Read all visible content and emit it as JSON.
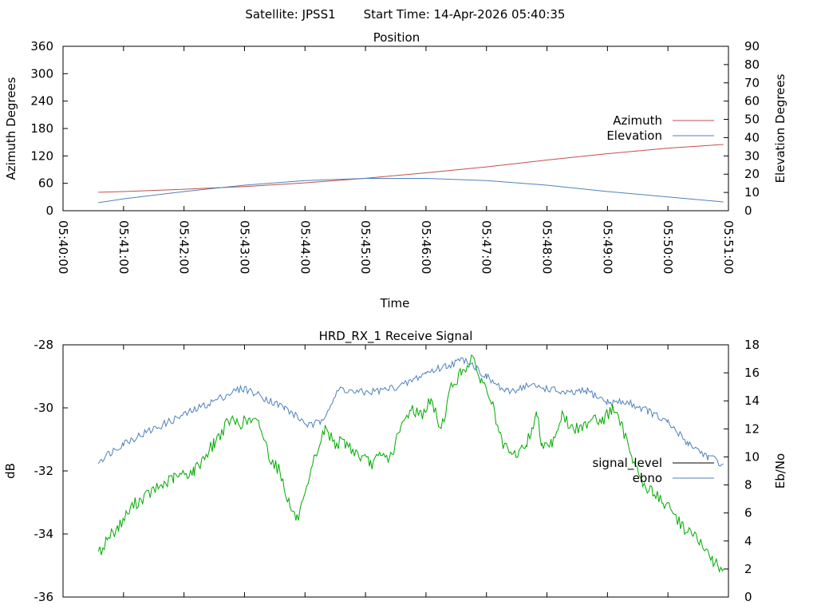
{
  "header": {
    "satellite": "Satellite: JPSS1",
    "start_time": "Start Time: 14-Apr-2026 05:40:35"
  },
  "chart_data": [
    {
      "type": "line",
      "title": "Position",
      "xlabel": "Time",
      "ylabel": "Azimuth Degrees",
      "y2label": "Elevation Degrees",
      "xlim": [
        0,
        660
      ],
      "ylim": [
        0,
        360
      ],
      "y2lim": [
        0,
        90
      ],
      "x_tick_labels": [
        "05:40:00",
        "05:41:00",
        "05:42:00",
        "05:43:00",
        "05:44:00",
        "05:45:00",
        "05:46:00",
        "05:47:00",
        "05:48:00",
        "05:49:00",
        "05:50:00",
        "05:51:00"
      ],
      "y_ticks": [
        0,
        60,
        120,
        180,
        240,
        300,
        360
      ],
      "y2_ticks": [
        0,
        10,
        20,
        30,
        40,
        50,
        60,
        70,
        80,
        90
      ],
      "legend_position": "right",
      "series": [
        {
          "name": "Azimuth",
          "axis": "y",
          "color": "#c0504d",
          "x": [
            35,
            60,
            120,
            180,
            240,
            300,
            360,
            420,
            480,
            540,
            600,
            655
          ],
          "y": [
            40.3,
            42,
            47,
            53,
            61,
            71,
            83,
            96,
            111,
            125,
            137,
            145
          ]
        },
        {
          "name": "Elevation",
          "axis": "y2",
          "color": "#4f81bd",
          "x": [
            35,
            60,
            120,
            180,
            240,
            300,
            360,
            420,
            480,
            540,
            600,
            655
          ],
          "y": [
            4.4,
            6.5,
            10.5,
            14,
            16.5,
            17.7,
            17.7,
            16.5,
            14,
            10.5,
            7.5,
            4.8
          ]
        }
      ]
    },
    {
      "type": "line",
      "title": "HRD_RX_1 Receive Signal",
      "xlabel": "",
      "ylabel": "dB",
      "y2label": "Eb/No",
      "xlim": [
        0,
        660
      ],
      "ylim": [
        -36,
        -28
      ],
      "y2lim": [
        0,
        18
      ],
      "y_tick_labels": [
        "-36",
        "-34",
        "-32",
        "-30",
        "-28"
      ],
      "y2_ticks": [
        0,
        2,
        4,
        6,
        8,
        10,
        12,
        14,
        16,
        18
      ],
      "legend_position": "right",
      "series": [
        {
          "name": "signal_level",
          "axis": "y",
          "color": "#000000",
          "x": [],
          "y": []
        },
        {
          "name": "ebno",
          "axis": "y2",
          "color": "#4f81bd",
          "x": [
            35,
            60,
            90,
            120,
            150,
            170,
            180,
            200,
            220,
            235,
            245,
            255,
            275,
            290,
            300,
            320,
            340,
            360,
            380,
            400,
            420,
            440,
            460,
            480,
            500,
            520,
            540,
            560,
            580,
            600,
            620,
            640,
            655
          ],
          "y": [
            9.7,
            11,
            12,
            13,
            14,
            14.7,
            14.9,
            14.2,
            13.5,
            12.7,
            12.2,
            12.5,
            14.9,
            14.6,
            14.6,
            14.8,
            15.2,
            16.0,
            16.5,
            17.0,
            15.7,
            14.6,
            15.1,
            14.9,
            14.5,
            14.7,
            13.9,
            13.9,
            13.3,
            12.4,
            11.0,
            10.0,
            9.5
          ]
        },
        {
          "name": "",
          "axis": "y2",
          "color": "#00aa00",
          "x": [
            35,
            45,
            55,
            70,
            90,
            110,
            130,
            150,
            165,
            175,
            185,
            195,
            205,
            215,
            225,
            232,
            240,
            250,
            260,
            270,
            280,
            295,
            305,
            315,
            325,
            335,
            345,
            355,
            365,
            375,
            385,
            395,
            405,
            415,
            425,
            435,
            445,
            455,
            460,
            465,
            470,
            475,
            485,
            495,
            505,
            515,
            525,
            535,
            545,
            555,
            565,
            575,
            585,
            595,
            605,
            615,
            625,
            635,
            645,
            655
          ],
          "y": [
            3.0,
            4.3,
            5.0,
            6.6,
            7.6,
            8.5,
            9.0,
            11.0,
            12.6,
            12.4,
            12.6,
            12.3,
            10.0,
            9.0,
            6.5,
            5.5,
            7.0,
            10.0,
            12.0,
            11.0,
            11.0,
            10.0,
            9.5,
            10.0,
            10.0,
            12.0,
            13.5,
            13.0,
            14.0,
            12.0,
            15.0,
            16.0,
            17.0,
            15.5,
            14.0,
            11.0,
            10.0,
            10.5,
            11.0,
            12.0,
            13.0,
            11.0,
            11.0,
            13.0,
            12.0,
            12.0,
            13.0,
            12.5,
            13.5,
            12.0,
            10.0,
            8.0,
            7.5,
            6.8,
            6.0,
            5.0,
            4.5,
            3.5,
            2.5,
            2.0
          ]
        }
      ]
    }
  ]
}
